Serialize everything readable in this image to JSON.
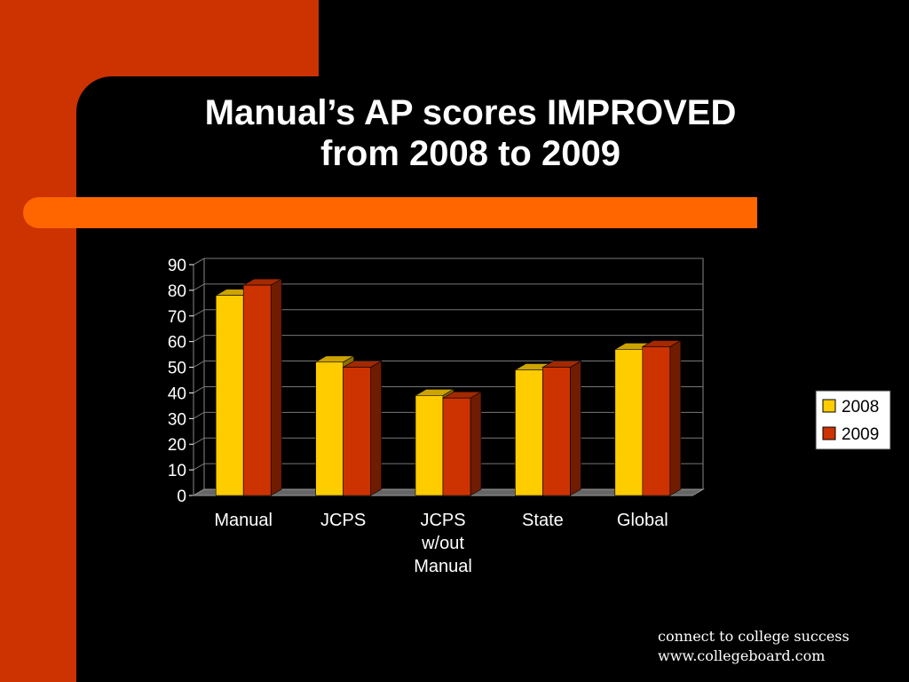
{
  "slide": {
    "title_line1": "Manual’s AP scores IMPROVED",
    "title_line2": "from 2008 to 2009",
    "footer_line1": "connect to college success",
    "footer_line2": "www.collegeboard.com",
    "colors": {
      "background": "#000000",
      "accent_orange": "#cc3300",
      "accent_bar": "#ff6600",
      "text": "#ffffff"
    }
  },
  "chart_data": {
    "type": "bar",
    "title": "",
    "xlabel": "",
    "ylabel": "",
    "categories": [
      [
        "Manual"
      ],
      [
        "JCPS"
      ],
      [
        "JCPS",
        "w/out",
        "Manual"
      ],
      [
        "State"
      ],
      [
        "Global"
      ]
    ],
    "series": [
      {
        "name": "2008",
        "color": "#ffcc00",
        "values": [
          78,
          52,
          39,
          49,
          57
        ]
      },
      {
        "name": "2009",
        "color": "#cc3300",
        "values": [
          82,
          50,
          38,
          50,
          58
        ]
      }
    ],
    "ylim": [
      0,
      90
    ],
    "yticks": [
      0,
      10,
      20,
      30,
      40,
      50,
      60,
      70,
      80,
      90
    ],
    "grid": true,
    "legend_position": "right",
    "style": "3d-clustered-bar"
  }
}
